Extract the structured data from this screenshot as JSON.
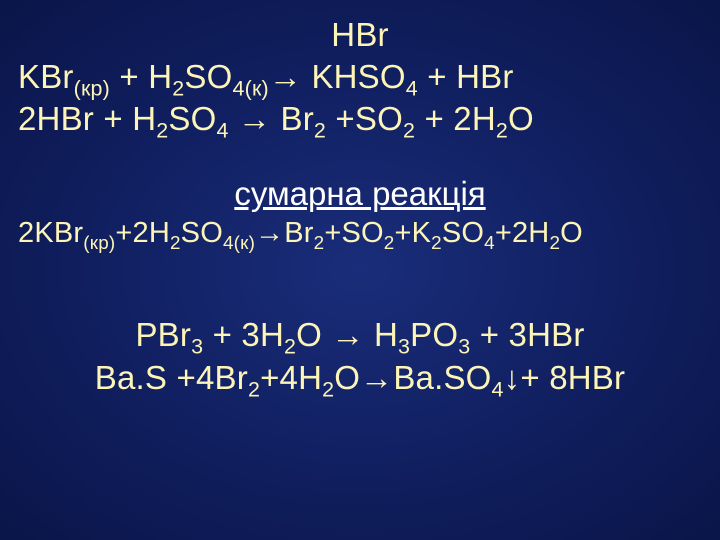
{
  "title": "HBr",
  "eq1_left": "KBr",
  "eq1_state1": "(кр)",
  "eq1_plus1": " + H",
  "eq1_s1": "2",
  "eq1_so": "SO",
  "eq1_s2": "4(к)",
  "eq1_arrow": "→ KHSO",
  "eq1_s3": "4",
  "eq1_tail": " + HBr",
  "eq2_a": "2HBr + H",
  "eq2_s1": "2",
  "eq2_b": "SO",
  "eq2_s2": "4",
  "eq2_c": " → Br",
  "eq2_s3": "2",
  "eq2_d": " +SO",
  "eq2_s4": "2",
  "eq2_e": " + 2H",
  "eq2_s5": "2",
  "eq2_f": "O",
  "sum_label": "сумарна реакція",
  "sum_a": "2KBr",
  "sum_st": "(кр)",
  "sum_b": "+2H",
  "sum_s1": "2",
  "sum_c": "SO",
  "sum_s2": "4(к)",
  "sum_d": "→Br",
  "sum_s3": "2",
  "sum_e": "+SO",
  "sum_s4": "2",
  "sum_f": "+K",
  "sum_s5": "2",
  "sum_g": "SO",
  "sum_s6": "4",
  "sum_h": "+2H",
  "sum_s7": "2",
  "sum_i": "O",
  "eq3_a": "PBr",
  "eq3_s1": "3",
  "eq3_b": " + 3H",
  "eq3_s2": "2",
  "eq3_c": "O → H",
  "eq3_s3": "3",
  "eq3_d": "PO",
  "eq3_s4": "3",
  "eq3_e": " + 3HBr",
  "eq4_a": "Ba.S +4Br",
  "eq4_s1": "2",
  "eq4_b": "+4H",
  "eq4_s2": "2",
  "eq4_c": "O→Ba.SO",
  "eq4_s3": "4",
  "eq4_d": "↓+ 8HBr",
  "colors": {
    "text": "#fdf5b8",
    "white": "#ffffff",
    "bg_center": "#1a2d7a",
    "bg_edge": "#0a1548"
  },
  "font_sizes": {
    "main_pt": 33,
    "sum_pt": 29
  }
}
